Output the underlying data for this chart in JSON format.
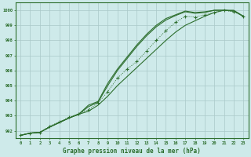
{
  "xlabel": "Graphe pression niveau de la mer (hPa)",
  "bg_color": "#ceeaea",
  "grid_color": "#aac8c8",
  "line_color": "#2d6e2d",
  "xlim": [
    -0.5,
    23.5
  ],
  "ylim": [
    991.5,
    1000.5
  ],
  "xticks": [
    0,
    1,
    2,
    3,
    4,
    5,
    6,
    7,
    8,
    9,
    10,
    11,
    12,
    13,
    14,
    15,
    16,
    17,
    18,
    19,
    20,
    21,
    22,
    23
  ],
  "yticks": [
    992,
    993,
    994,
    995,
    996,
    997,
    998,
    999,
    1000
  ],
  "series_dotted": [
    991.7,
    991.85,
    991.9,
    992.3,
    992.6,
    992.9,
    993.15,
    993.4,
    993.85,
    994.6,
    995.5,
    996.1,
    996.6,
    997.3,
    998.0,
    998.65,
    999.2,
    999.6,
    999.55,
    999.7,
    999.85,
    1000.0,
    999.9,
    999.6
  ],
  "series_low": [
    991.7,
    991.85,
    991.9,
    992.25,
    992.55,
    992.85,
    993.1,
    993.3,
    993.7,
    994.3,
    995.0,
    995.6,
    996.2,
    996.8,
    997.4,
    998.0,
    998.55,
    999.0,
    999.3,
    999.6,
    999.85,
    1000.0,
    1000.0,
    999.6
  ],
  "series_mid": [
    991.7,
    991.85,
    991.9,
    992.25,
    992.55,
    992.85,
    993.1,
    993.6,
    993.9,
    995.0,
    996.0,
    996.8,
    997.6,
    998.3,
    998.9,
    999.35,
    999.65,
    999.9,
    999.8,
    999.85,
    1000.0,
    1000.0,
    999.95,
    999.6
  ],
  "series_high": [
    991.7,
    991.85,
    991.9,
    992.25,
    992.55,
    992.85,
    993.1,
    993.7,
    993.95,
    995.15,
    996.1,
    996.9,
    997.7,
    998.4,
    999.0,
    999.45,
    999.7,
    999.95,
    999.85,
    999.9,
    1000.0,
    1000.0,
    999.95,
    999.6
  ]
}
